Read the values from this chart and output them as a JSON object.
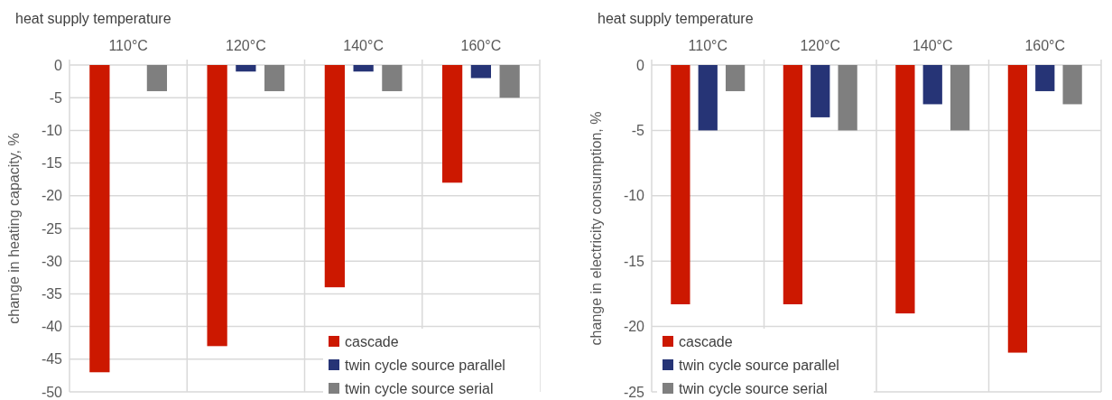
{
  "chart_data": [
    {
      "type": "bar",
      "xlabel": "heat supply temperature",
      "ylabel": "change in heating capacity, %",
      "categories": [
        "110°C",
        "120°C",
        "140°C",
        "160°C"
      ],
      "series": [
        {
          "name": "cascade",
          "color": "#cc1800",
          "values": [
            -47,
            -43,
            -34,
            -18
          ]
        },
        {
          "name": "twin cycle source parallel",
          "color": "#263476",
          "values": [
            0,
            -1,
            -1,
            -2
          ]
        },
        {
          "name": "twin cycle source serial",
          "color": "#7f7f7f",
          "values": [
            -4,
            -4,
            -4,
            -5
          ]
        }
      ],
      "ylim": [
        -50,
        0
      ],
      "yticks": [
        0,
        -5,
        -10,
        -15,
        -20,
        -25,
        -30,
        -35,
        -40,
        -45,
        -50
      ],
      "grid": true,
      "legend": "bottom right"
    },
    {
      "type": "bar",
      "xlabel": "heat supply temperature",
      "ylabel": "change in electricity consumption, %",
      "categories": [
        "110°C",
        "120°C",
        "140°C",
        "160°C"
      ],
      "series": [
        {
          "name": "cascade",
          "color": "#cc1800",
          "values": [
            -18.3,
            -18.3,
            -19,
            -22
          ]
        },
        {
          "name": "twin cycle source parallel",
          "color": "#263476",
          "values": [
            -5,
            -4,
            -3,
            -2
          ]
        },
        {
          "name": "twin cycle source serial",
          "color": "#7f7f7f",
          "values": [
            -2,
            -5,
            -5,
            -3
          ]
        }
      ],
      "ylim": [
        -25,
        0
      ],
      "yticks": [
        0,
        -5,
        -10,
        -15,
        -20,
        -25
      ],
      "grid": true,
      "legend": "bottom left"
    }
  ]
}
